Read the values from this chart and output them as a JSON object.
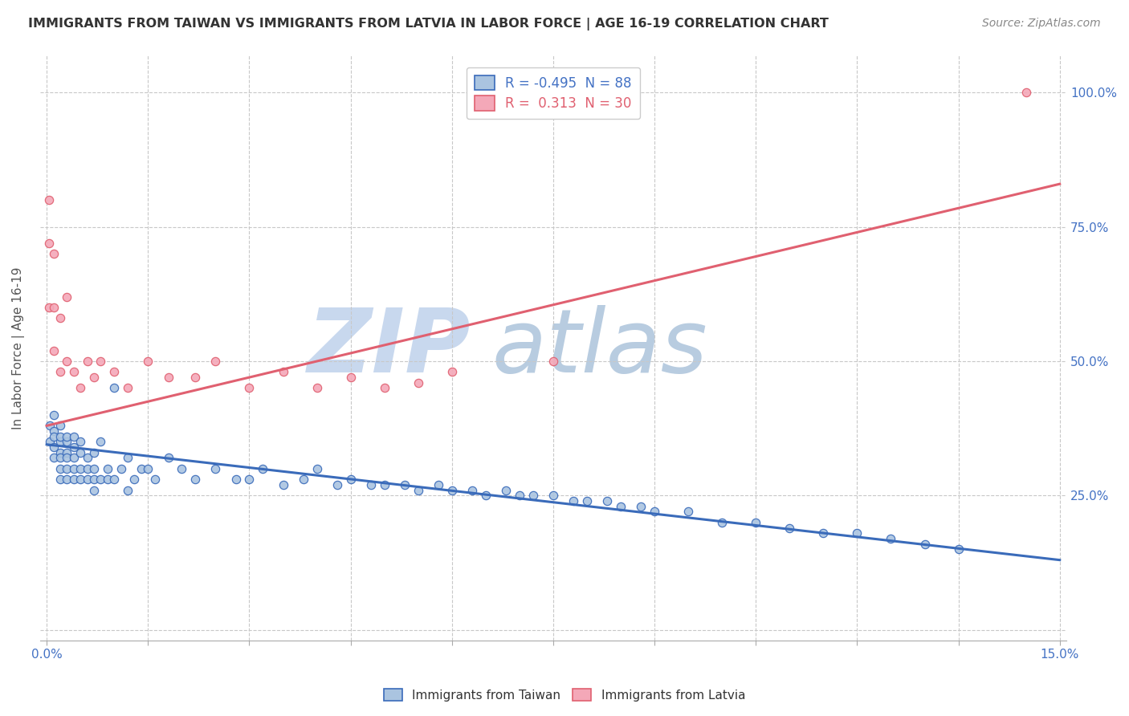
{
  "title": "IMMIGRANTS FROM TAIWAN VS IMMIGRANTS FROM LATVIA IN LABOR FORCE | AGE 16-19 CORRELATION CHART",
  "source": "Source: ZipAtlas.com",
  "xlabel_taiwan": "Immigrants from Taiwan",
  "xlabel_latvia": "Immigrants from Latvia",
  "ylabel": "In Labor Force | Age 16-19",
  "xlim": [
    -0.001,
    0.151
  ],
  "ylim": [
    -0.02,
    1.07
  ],
  "xticks": [
    0.0,
    0.015,
    0.03,
    0.045,
    0.06,
    0.075,
    0.09,
    0.105,
    0.12,
    0.135,
    0.15
  ],
  "xticklabels": [
    "0.0%",
    "",
    "",
    "",
    "",
    "",
    "",
    "",
    "",
    "",
    "15.0%"
  ],
  "yticks": [
    0.0,
    0.25,
    0.5,
    0.75,
    1.0
  ],
  "yticklabels": [
    "",
    "25.0%",
    "50.0%",
    "75.0%",
    "100.0%"
  ],
  "legend_r_taiwan": "-0.495",
  "legend_n_taiwan": "88",
  "legend_r_latvia": " 0.313",
  "legend_n_latvia": "30",
  "taiwan_color": "#aac4e0",
  "latvia_color": "#f4a8b8",
  "taiwan_line_color": "#3a6bba",
  "latvia_line_color": "#e06070",
  "watermark_zip": "ZIP",
  "watermark_atlas": "atlas",
  "watermark_zip_color": "#c8d8ee",
  "watermark_atlas_color": "#b8cce0",
  "background_color": "#ffffff",
  "grid_color": "#c8c8c8",
  "taiwan_scatter_x": [
    0.0005,
    0.0005,
    0.001,
    0.001,
    0.001,
    0.001,
    0.001,
    0.002,
    0.002,
    0.002,
    0.002,
    0.002,
    0.002,
    0.002,
    0.003,
    0.003,
    0.003,
    0.003,
    0.003,
    0.003,
    0.004,
    0.004,
    0.004,
    0.004,
    0.004,
    0.005,
    0.005,
    0.005,
    0.005,
    0.006,
    0.006,
    0.006,
    0.007,
    0.007,
    0.007,
    0.007,
    0.008,
    0.008,
    0.009,
    0.009,
    0.01,
    0.01,
    0.011,
    0.012,
    0.012,
    0.013,
    0.014,
    0.015,
    0.016,
    0.018,
    0.02,
    0.022,
    0.025,
    0.028,
    0.03,
    0.032,
    0.035,
    0.038,
    0.04,
    0.043,
    0.045,
    0.048,
    0.05,
    0.053,
    0.055,
    0.058,
    0.06,
    0.063,
    0.065,
    0.068,
    0.07,
    0.072,
    0.075,
    0.078,
    0.08,
    0.083,
    0.085,
    0.088,
    0.09,
    0.095,
    0.1,
    0.105,
    0.11,
    0.115,
    0.12,
    0.125,
    0.13,
    0.135
  ],
  "taiwan_scatter_y": [
    0.38,
    0.35,
    0.4,
    0.37,
    0.34,
    0.36,
    0.32,
    0.35,
    0.38,
    0.33,
    0.36,
    0.3,
    0.32,
    0.28,
    0.33,
    0.35,
    0.3,
    0.28,
    0.32,
    0.36,
    0.34,
    0.3,
    0.28,
    0.32,
    0.36,
    0.3,
    0.33,
    0.28,
    0.35,
    0.3,
    0.28,
    0.32,
    0.28,
    0.3,
    0.33,
    0.26,
    0.28,
    0.35,
    0.28,
    0.3,
    0.45,
    0.28,
    0.3,
    0.32,
    0.26,
    0.28,
    0.3,
    0.3,
    0.28,
    0.32,
    0.3,
    0.28,
    0.3,
    0.28,
    0.28,
    0.3,
    0.27,
    0.28,
    0.3,
    0.27,
    0.28,
    0.27,
    0.27,
    0.27,
    0.26,
    0.27,
    0.26,
    0.26,
    0.25,
    0.26,
    0.25,
    0.25,
    0.25,
    0.24,
    0.24,
    0.24,
    0.23,
    0.23,
    0.22,
    0.22,
    0.2,
    0.2,
    0.19,
    0.18,
    0.18,
    0.17,
    0.16,
    0.15
  ],
  "latvia_scatter_x": [
    0.0003,
    0.0003,
    0.0003,
    0.001,
    0.001,
    0.001,
    0.002,
    0.002,
    0.003,
    0.003,
    0.004,
    0.005,
    0.006,
    0.007,
    0.008,
    0.01,
    0.012,
    0.015,
    0.018,
    0.022,
    0.025,
    0.03,
    0.035,
    0.04,
    0.045,
    0.05,
    0.055,
    0.06,
    0.075,
    0.145
  ],
  "latvia_scatter_y": [
    0.6,
    0.72,
    0.8,
    0.52,
    0.6,
    0.7,
    0.48,
    0.58,
    0.5,
    0.62,
    0.48,
    0.45,
    0.5,
    0.47,
    0.5,
    0.48,
    0.45,
    0.5,
    0.47,
    0.47,
    0.5,
    0.45,
    0.48,
    0.45,
    0.47,
    0.45,
    0.46,
    0.48,
    0.5,
    1.0
  ],
  "taiwan_trendline_x": [
    0.0,
    0.15
  ],
  "taiwan_trendline_y": [
    0.345,
    0.13
  ],
  "latvia_trendline_x": [
    0.0,
    0.15
  ],
  "latvia_trendline_y": [
    0.38,
    0.83
  ]
}
